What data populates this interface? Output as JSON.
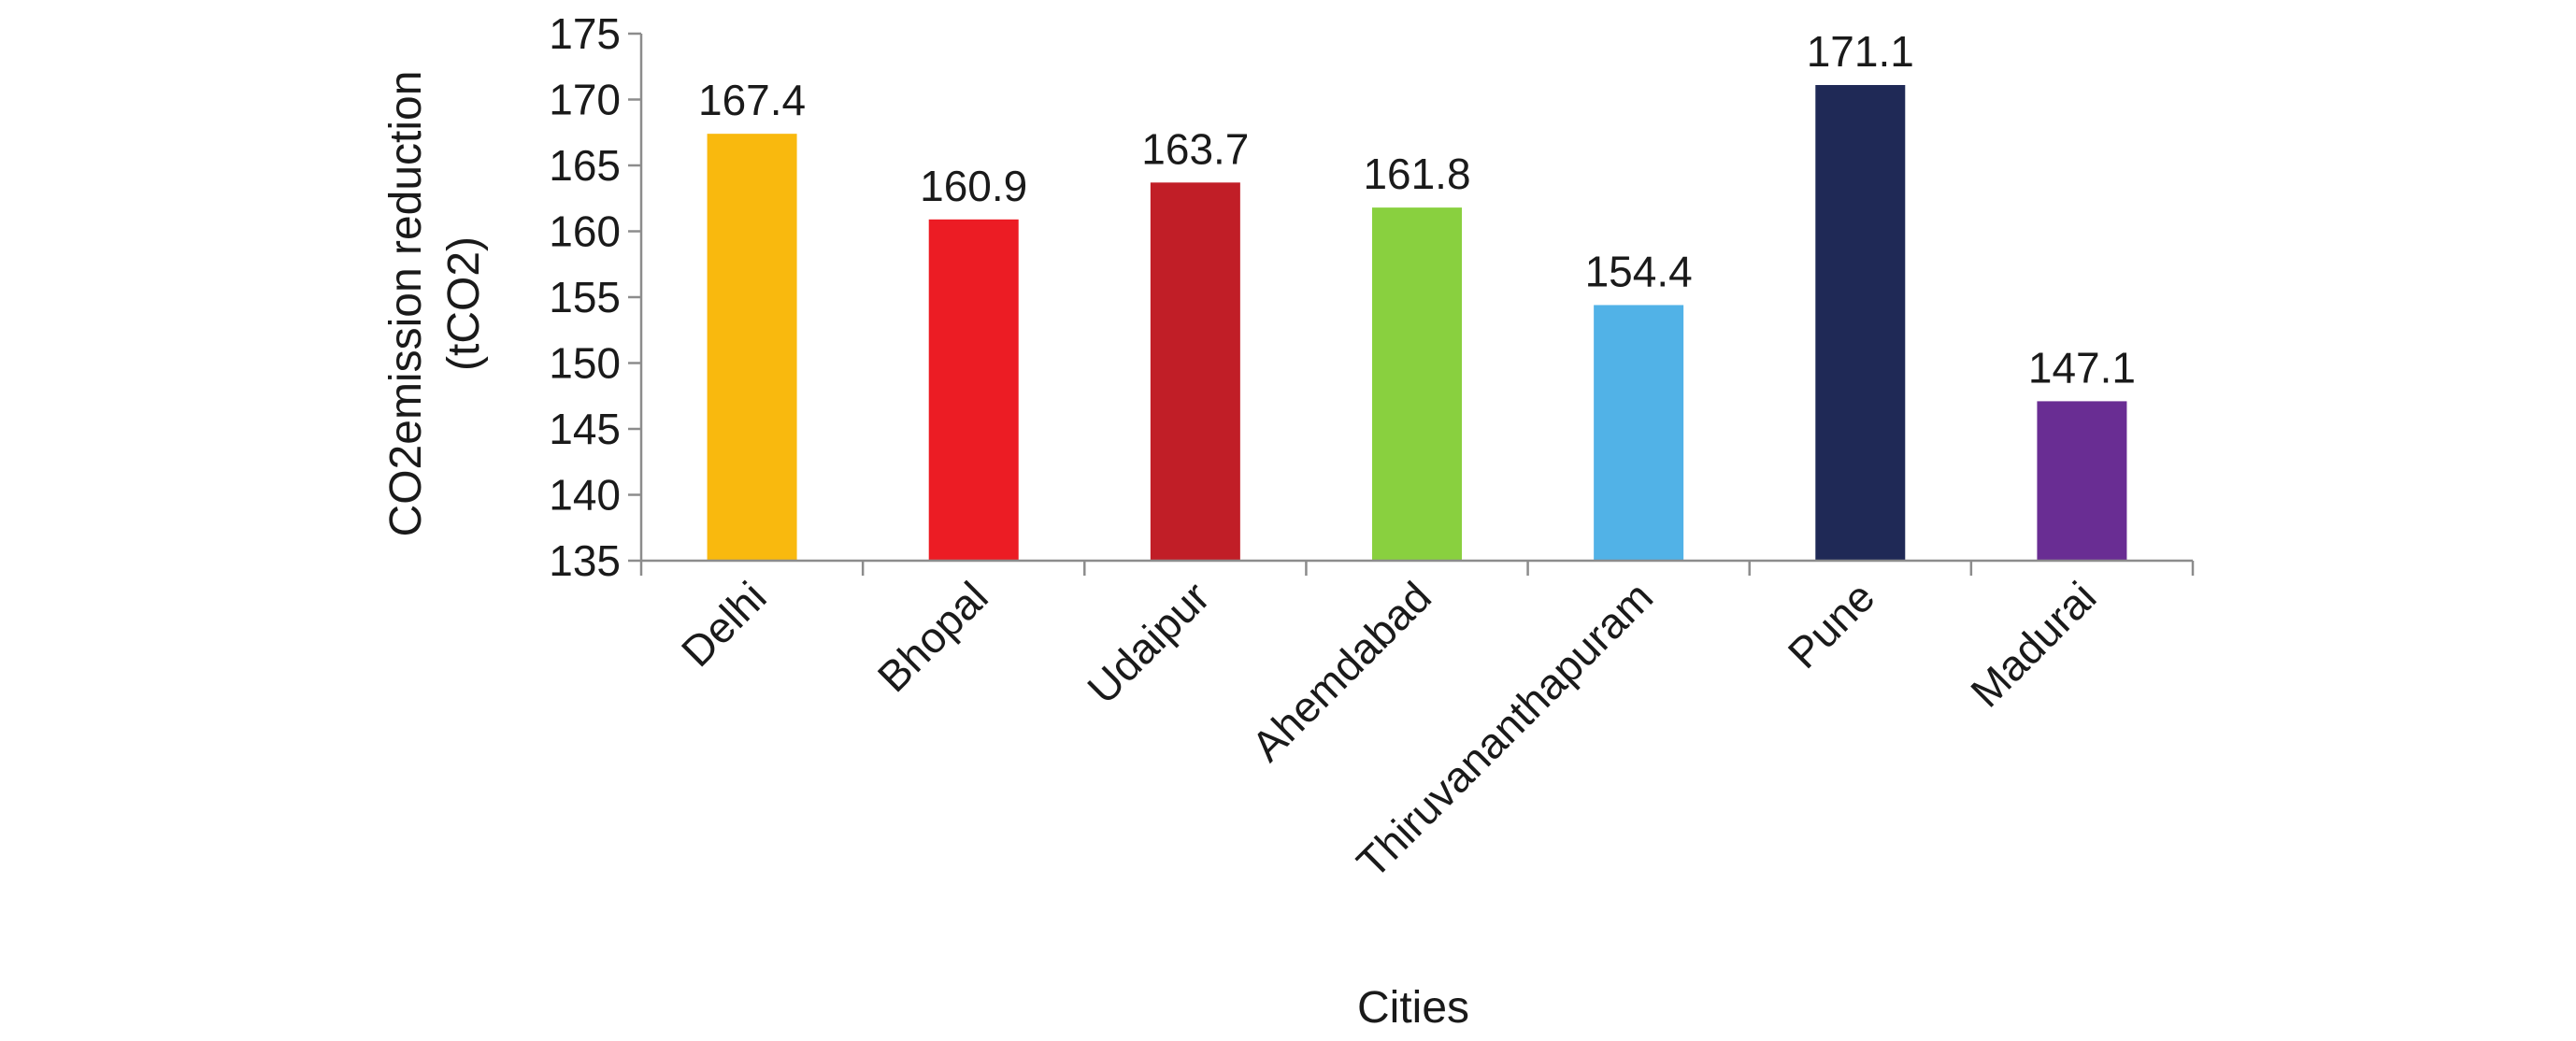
{
  "chart_data": {
    "type": "bar",
    "title": "",
    "xlabel": "Cities",
    "ylabel_lines": [
      "CO2emission reduction",
      "(tCO2)"
    ],
    "ylim": [
      135,
      175
    ],
    "ytick_step": 5,
    "yticks": [
      "135",
      "140",
      "145",
      "150",
      "155",
      "160",
      "165",
      "170",
      "175"
    ],
    "grid": false,
    "legend": "none",
    "categories": [
      "Delhi",
      "Bhopal",
      "Udaipur",
      "Ahemdabad",
      "Thiruvananthapuram",
      "Pune",
      "Madurai"
    ],
    "values": [
      167.4,
      160.9,
      163.7,
      161.8,
      154.4,
      171.1,
      147.1
    ],
    "value_labels": [
      "167.4",
      "160.9",
      "163.7",
      "161.8",
      "154.4",
      "171.1",
      "147.1"
    ],
    "colors": [
      "#F9B90E",
      "#EC1C24",
      "#C11E27",
      "#89D03F",
      "#51B2E7",
      "#1F2956",
      "#692D93"
    ]
  }
}
